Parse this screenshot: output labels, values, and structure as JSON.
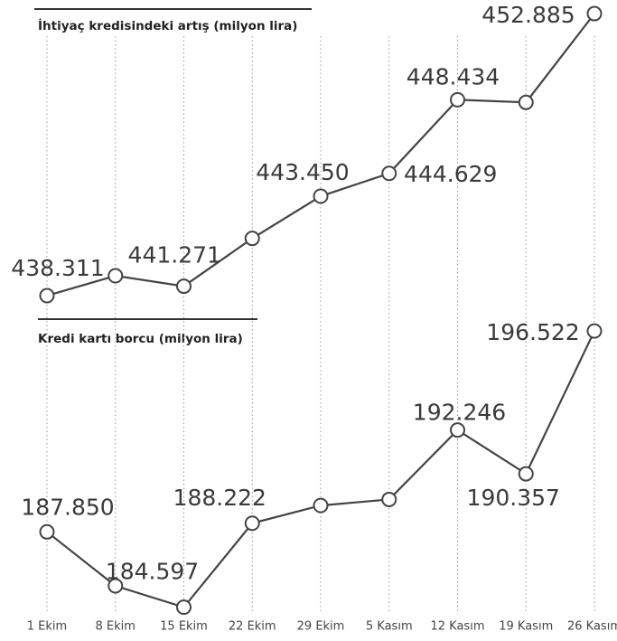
{
  "chart_data": {
    "type": "line",
    "categories": [
      "1 Ekim",
      "8 Ekim",
      "15 Ekim",
      "22 Ekim",
      "29 Ekim",
      "5 Kasım",
      "12 Kasım",
      "19 Kasım",
      "26 Kasım"
    ],
    "panels": [
      {
        "title": "İhtiyaç kredisindeki artış (milyon lira)",
        "ylim": [
          438,
          453
        ],
        "color": "#444444",
        "values": [
          438.311,
          439.34,
          438.8,
          441.271,
          443.45,
          444.629,
          448.434,
          448.3,
          452.885
        ],
        "value_labels": [
          "438.311",
          null,
          null,
          "441.271",
          "443.450",
          "444.629",
          "448.434",
          null,
          "452.885"
        ]
      },
      {
        "title": "Kredi kartı borcu (milyon lira)",
        "ylim": [
          184.4,
          196.8
        ],
        "color": "#444444",
        "values": [
          187.85,
          185.52,
          184.597,
          188.222,
          188.99,
          189.25,
          192.246,
          190.357,
          196.522
        ],
        "value_labels": [
          "187.850",
          null,
          "184.597",
          "188.222",
          null,
          null,
          "192.246",
          "190.357",
          "196.522"
        ]
      }
    ]
  }
}
